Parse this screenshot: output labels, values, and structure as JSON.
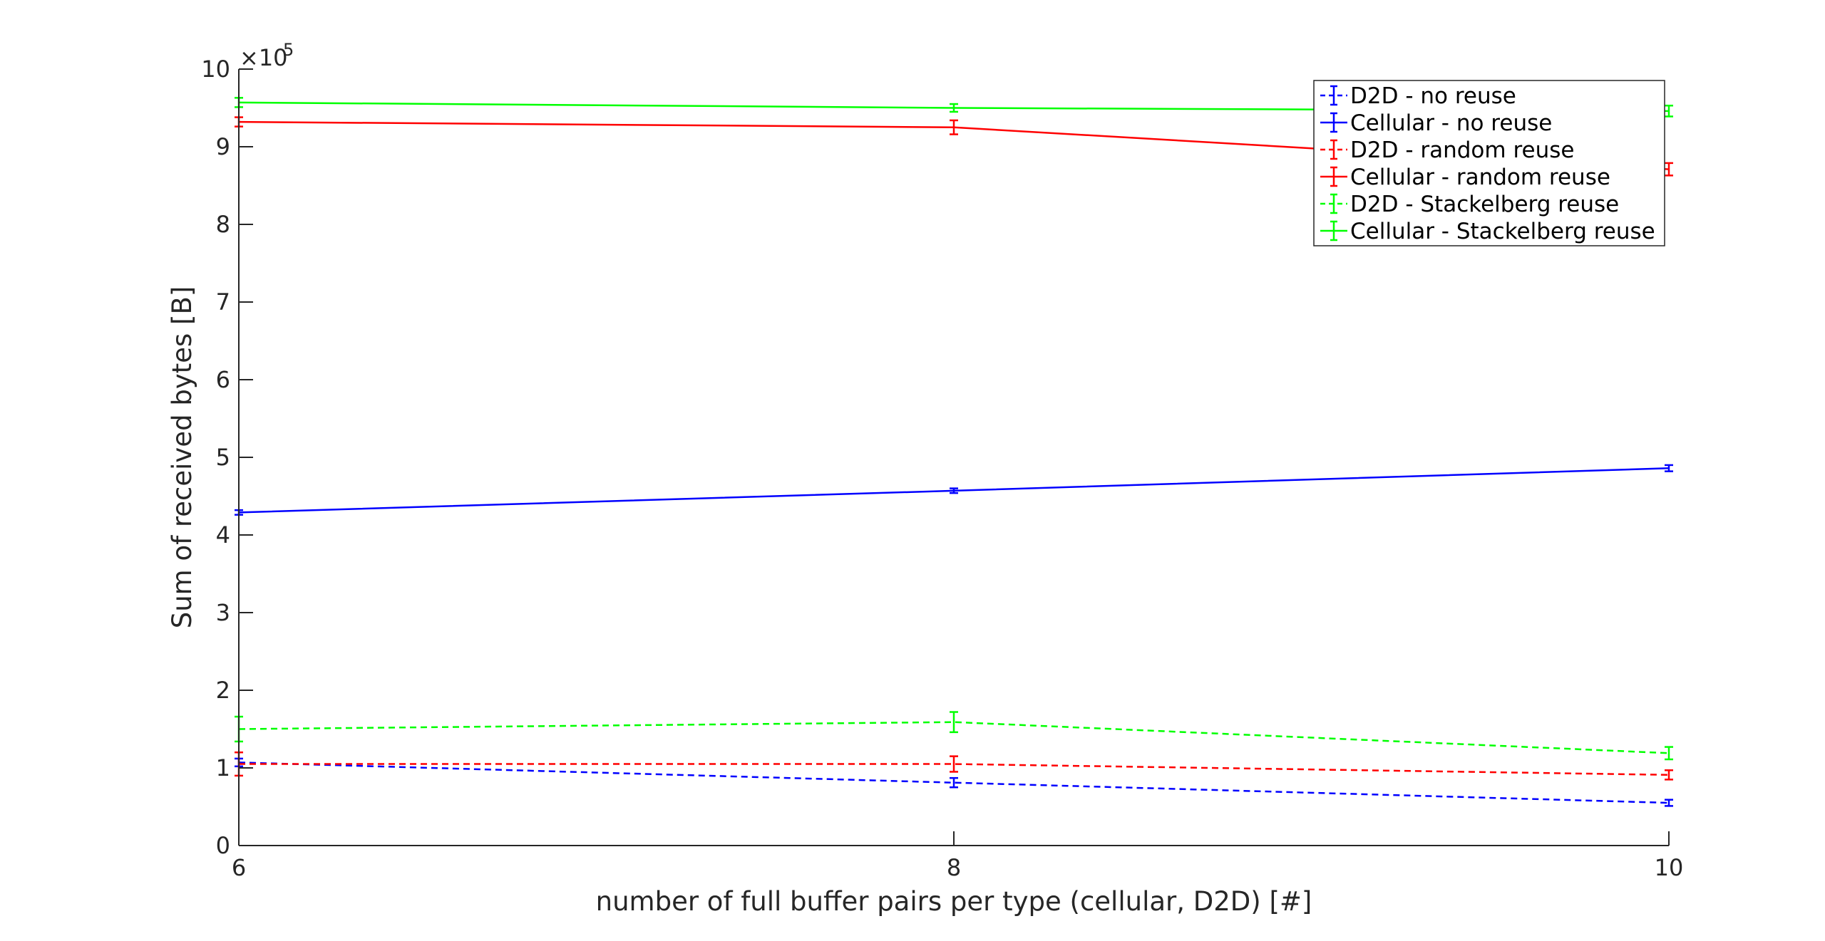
{
  "chart_data": {
    "type": "line",
    "xlabel": "number of full buffer pairs per type (cellular, D2D) [#]",
    "ylabel": "Sum of received bytes [B]",
    "y_multiplier": "×10",
    "y_multiplier_exp": "5",
    "x": [
      6,
      8,
      10
    ],
    "xlim": [
      6,
      10
    ],
    "ylim": [
      0,
      10
    ],
    "x_ticks": [
      "6",
      "8",
      "10"
    ],
    "y_ticks": [
      "0",
      "1",
      "2",
      "3",
      "4",
      "5",
      "6",
      "7",
      "8",
      "9",
      "10"
    ],
    "grid": false,
    "legend_position": "top-right",
    "series": [
      {
        "name": "D2D - no reuse",
        "color": "#0000ff",
        "style": "dashed",
        "values": [
          1.07,
          0.81,
          0.55
        ],
        "errors": [
          0.05,
          0.06,
          0.04
        ]
      },
      {
        "name": "Cellular - no reuse",
        "color": "#0000ff",
        "style": "solid",
        "values": [
          4.29,
          4.57,
          4.86
        ],
        "errors": [
          0.03,
          0.03,
          0.04
        ]
      },
      {
        "name": "D2D - random reuse",
        "color": "#ff0000",
        "style": "dashed",
        "values": [
          1.05,
          1.05,
          0.91
        ],
        "errors": [
          0.15,
          0.1,
          0.06
        ]
      },
      {
        "name": "Cellular - random reuse",
        "color": "#ff0000",
        "style": "solid",
        "values": [
          9.32,
          9.25,
          8.71
        ],
        "errors": [
          0.06,
          0.09,
          0.08
        ]
      },
      {
        "name": "D2D - Stackelberg reuse",
        "color": "#00ff00",
        "style": "dashed",
        "values": [
          1.5,
          1.59,
          1.19
        ],
        "errors": [
          0.16,
          0.13,
          0.08
        ]
      },
      {
        "name": "Cellular - Stackelberg reuse",
        "color": "#00ff00",
        "style": "solid",
        "values": [
          9.57,
          9.5,
          9.46
        ],
        "errors": [
          0.06,
          0.05,
          0.07
        ]
      }
    ]
  }
}
